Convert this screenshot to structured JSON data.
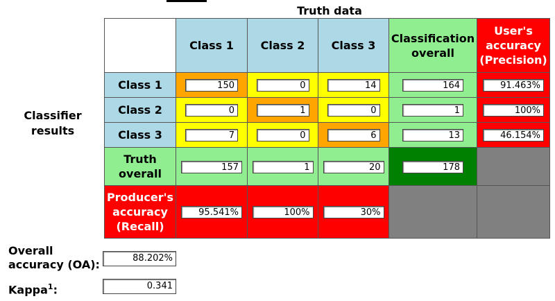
{
  "truth_title": "Truth data",
  "classifier_label": "Classifier results",
  "headers": {
    "class1": "Class 1",
    "class2": "Class 2",
    "class3": "Class 3",
    "classification_overall": "Classification overall",
    "users_accuracy": "User's accuracy (Precision)"
  },
  "rows": [
    {
      "label": "Class 1",
      "cells": [
        "150",
        "0",
        "14"
      ],
      "overall": "164",
      "users_accuracy": "91.463%"
    },
    {
      "label": "Class 2",
      "cells": [
        "0",
        "1",
        "0"
      ],
      "overall": "1",
      "users_accuracy": "100%"
    },
    {
      "label": "Class 3",
      "cells": [
        "7",
        "0",
        "6"
      ],
      "overall": "13",
      "users_accuracy": "46.154%"
    }
  ],
  "truth_overall": {
    "label": "Truth overall",
    "cells": [
      "157",
      "1",
      "20"
    ],
    "total": "178"
  },
  "producers_accuracy": {
    "label": "Producer's accuracy (Recall)",
    "cells": [
      "95.541%",
      "100%",
      "30%"
    ]
  },
  "overall_accuracy": {
    "label": "Overall accuracy (OA):",
    "value": "88.202%"
  },
  "kappa": {
    "label": "Kappa",
    "sup": "1",
    "suffix": ":",
    "value": "0.341"
  },
  "colors": {
    "header_blue": "#add8e6",
    "overall_green": "#90ee90",
    "total_dark_green": "#008000",
    "accuracy_red": "#ff0000",
    "diagonal_orange": "#ffa500",
    "offdiag_yellow": "#ffff00",
    "empty_gray": "#808080"
  }
}
